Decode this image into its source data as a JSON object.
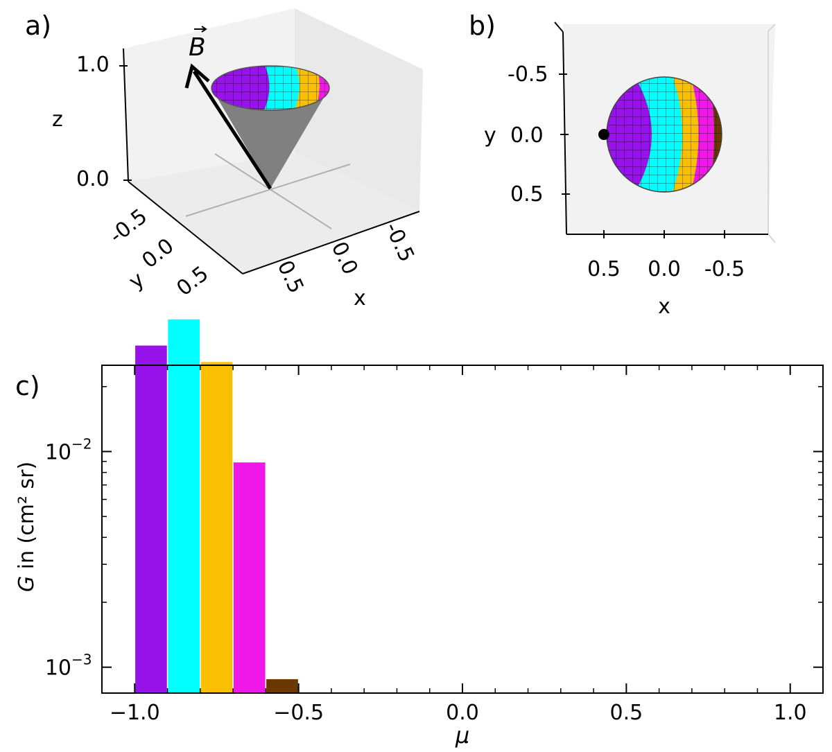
{
  "panels": {
    "a": {
      "label": "a)",
      "vector_label": "B",
      "z_axis_label": "z",
      "z_ticks": [
        "1.0",
        "0.0"
      ],
      "y_axis_label": "y",
      "y_ticks": [
        "-0.5",
        "0.0",
        "0.5"
      ],
      "x_axis_label": "x",
      "x_ticks": [
        "0.5",
        "0.0",
        "-0.5"
      ]
    },
    "b": {
      "label": "b)",
      "y_axis_label": "y",
      "y_ticks": [
        "-0.5",
        "0.0",
        "0.5"
      ],
      "x_axis_label": "x",
      "x_ticks": [
        "0.5",
        "0.0",
        "-0.5"
      ]
    },
    "c": {
      "label": "c)"
    }
  },
  "colors": {
    "bin1": "#9812ec",
    "bin2": "#00ffff",
    "bin3": "#f8c000",
    "bin4": "#f018e8",
    "bin5": "#6b3800",
    "cone": "#808080"
  },
  "chart_data": {
    "type": "bar",
    "xlabel": "μ",
    "ylabel_main": "G",
    "ylabel_rest": " in (cm² sr)",
    "xlim": [
      -1.1,
      1.1
    ],
    "ylim_log10": [
      -3.12,
      -1.6
    ],
    "yscale": "log",
    "x_ticks": [
      -1.0,
      -0.5,
      0.0,
      0.5,
      1.0
    ],
    "x_tick_labels": [
      "−1.0",
      "−0.5",
      "0.0",
      "0.5",
      "1.0"
    ],
    "y_ticks": [
      0.01,
      0.001
    ],
    "y_tick_labels_base": [
      "10",
      "10"
    ],
    "y_tick_labels_exp": [
      "−2",
      "−3"
    ],
    "bin_width": 0.1,
    "bins": [
      {
        "x_left": -1.0,
        "value": 0.031,
        "color": "#9812ec"
      },
      {
        "x_left": -0.9,
        "value": 0.041,
        "color": "#00ffff"
      },
      {
        "x_left": -0.8,
        "value": 0.026,
        "color": "#f8c000"
      },
      {
        "x_left": -0.7,
        "value": 0.0089,
        "color": "#f018e8"
      },
      {
        "x_left": -0.6,
        "value": 0.00088,
        "color": "#6b3800"
      }
    ]
  }
}
